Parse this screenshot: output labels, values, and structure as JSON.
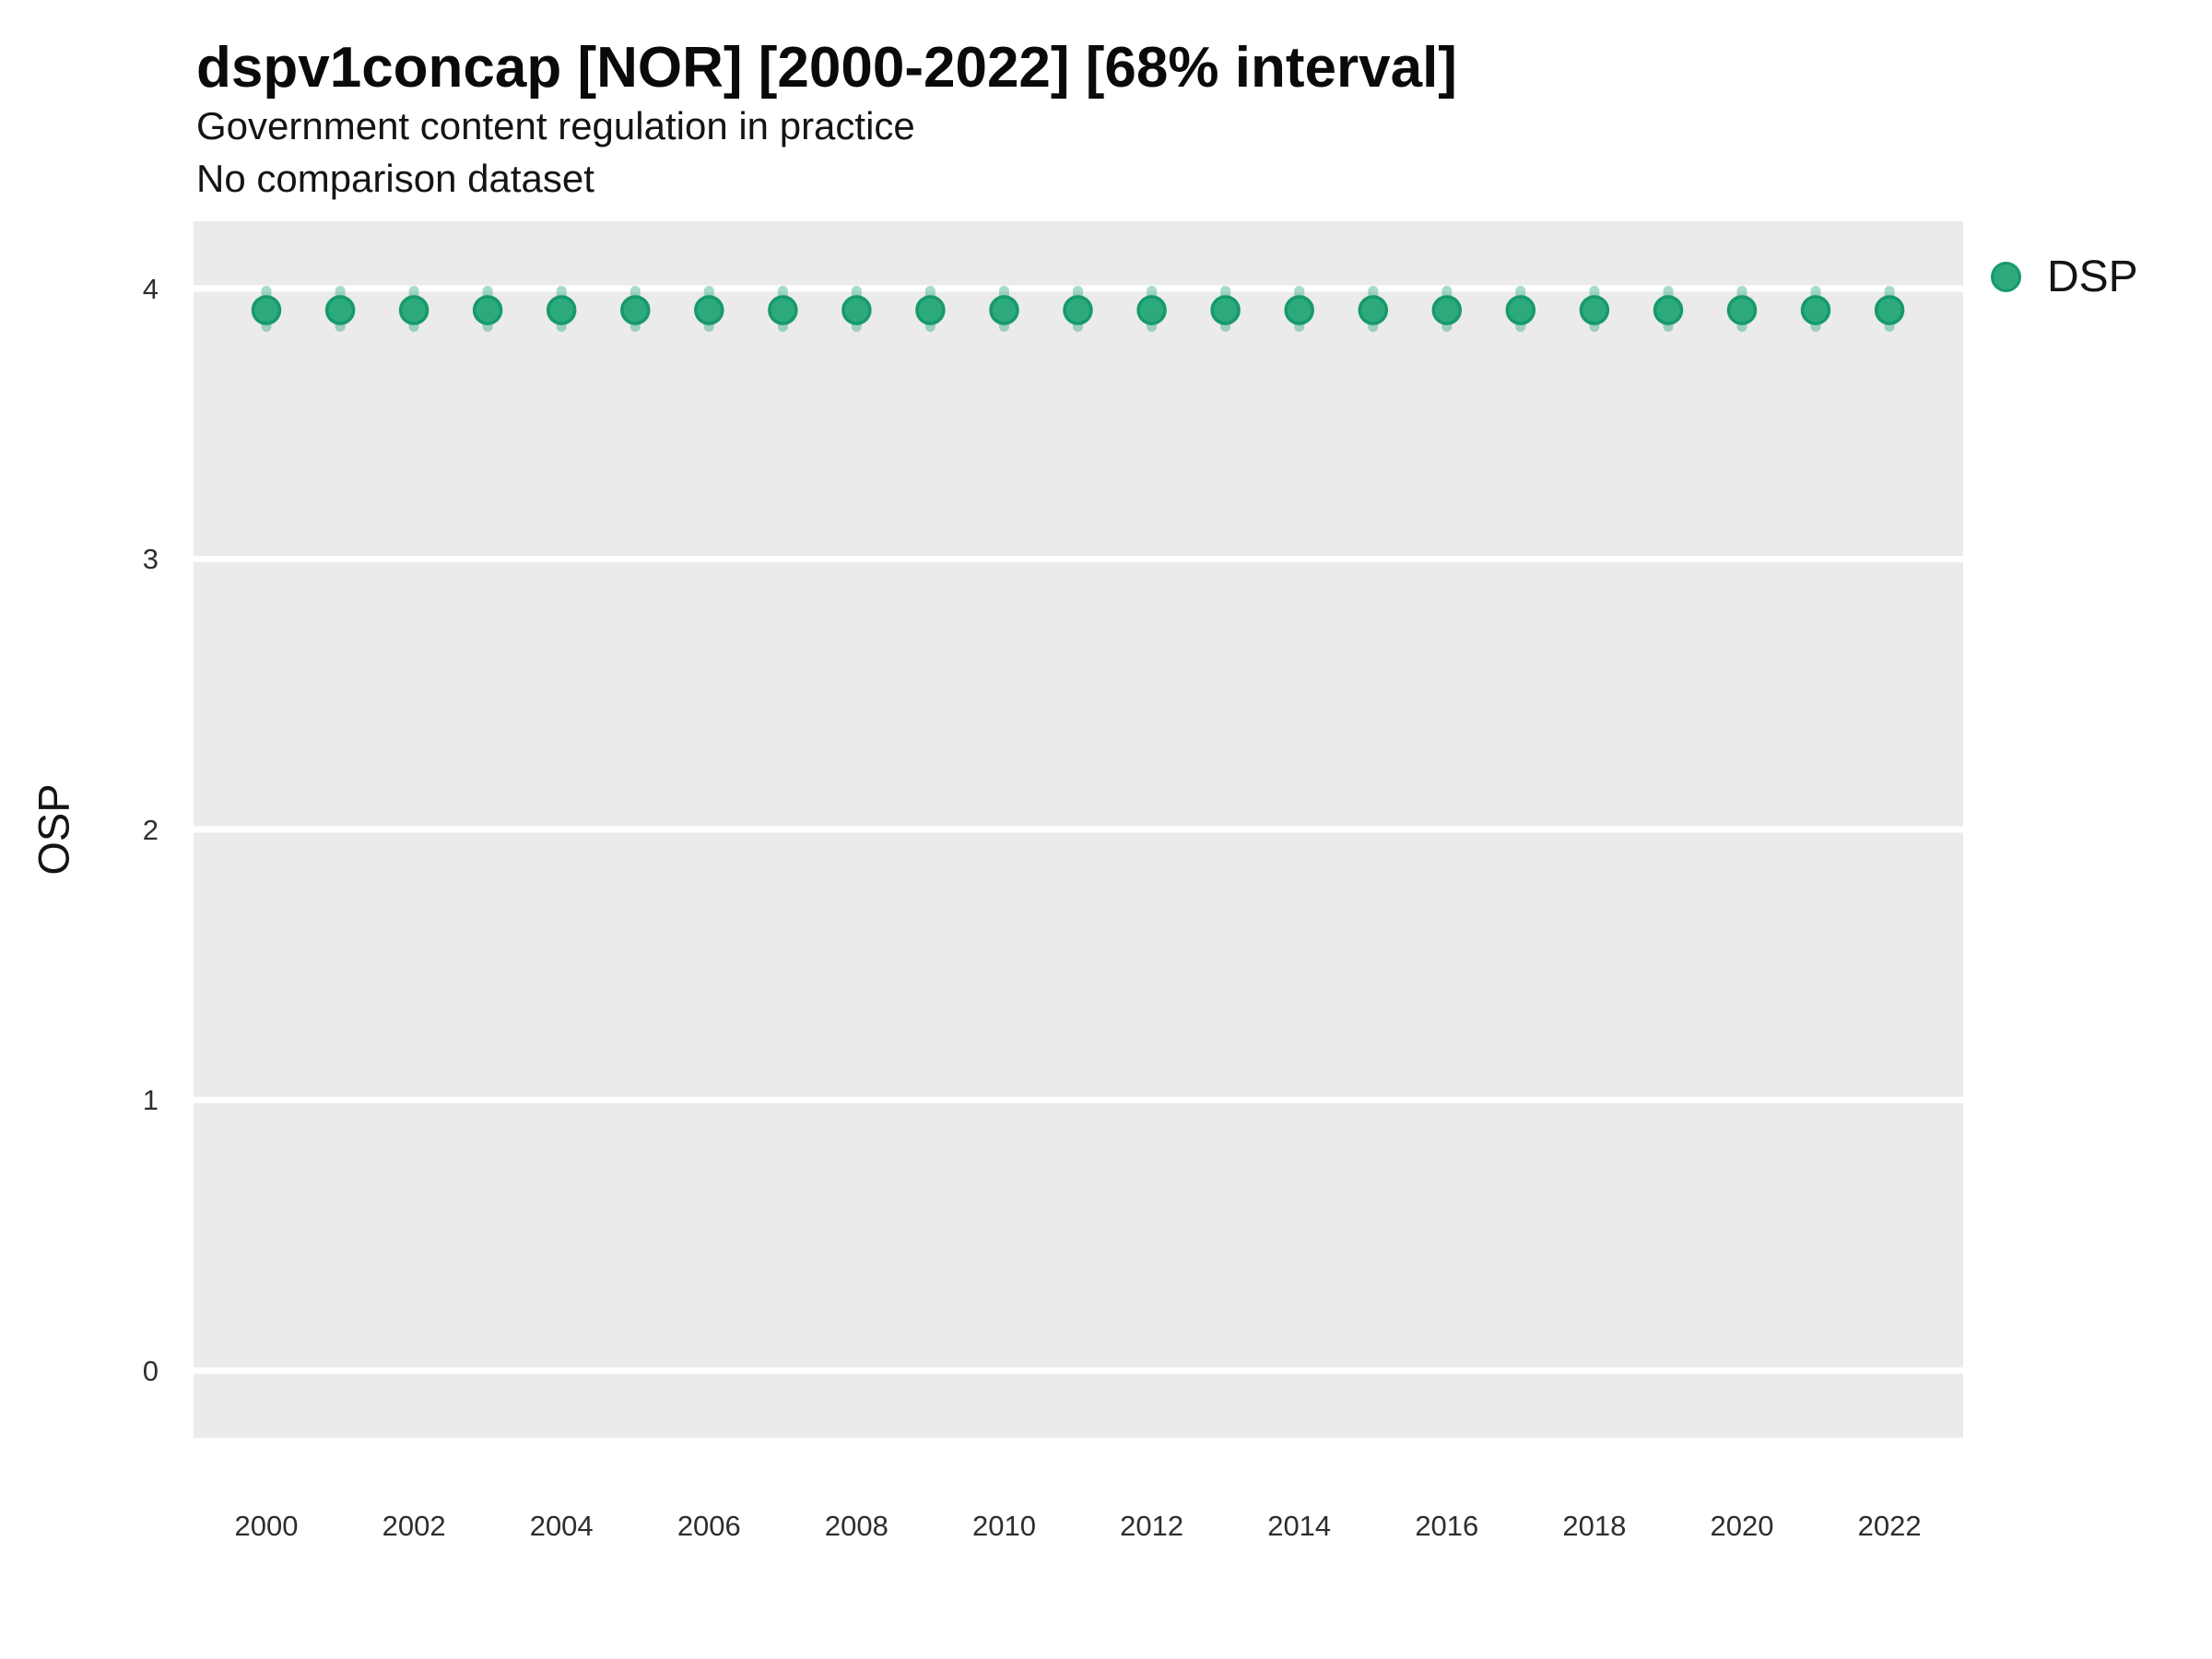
{
  "header": {
    "title": "dspv1concap [NOR] [2000-2022] [68% interval]",
    "subtitle": "Government content regulation in practice",
    "dataset_note": "No comparison dataset"
  },
  "legend": {
    "position": "right-top",
    "items": [
      {
        "label": "DSP",
        "marker": "circle",
        "color": "#2CAA7C",
        "stroke": "#17996B"
      }
    ]
  },
  "colors": {
    "point_fill": "#2CAA7C",
    "point_stroke": "#17996B",
    "interval_band": "rgba(44,170,124,0.42)",
    "panel_background": "#EBEBEB",
    "gridline": "#FFFFFF",
    "title_text": "#0a0a0a",
    "tick_text": "#2e2e2e"
  },
  "chart_data": {
    "type": "scatter",
    "title": "dspv1concap [NOR] [2000-2022] [68% interval]",
    "subtitle": "Government content regulation in practice",
    "annotation": "No comparison dataset",
    "xlabel": "",
    "ylabel": "OSP",
    "ylim": [
      -0.25,
      4.25
    ],
    "yticks": [
      0,
      1,
      2,
      3,
      4
    ],
    "xticks": [
      2000,
      2002,
      2004,
      2006,
      2008,
      2010,
      2012,
      2014,
      2016,
      2018,
      2020,
      2022
    ],
    "grid": "horizontal-major-only",
    "legend_position": "right-top",
    "interval_label": "68% interval",
    "x": [
      2000,
      2001,
      2002,
      2003,
      2004,
      2005,
      2006,
      2007,
      2008,
      2009,
      2010,
      2011,
      2012,
      2013,
      2014,
      2015,
      2016,
      2017,
      2018,
      2019,
      2020,
      2021,
      2022
    ],
    "series": [
      {
        "name": "DSP",
        "values": [
          3.92,
          3.92,
          3.92,
          3.92,
          3.92,
          3.92,
          3.92,
          3.92,
          3.92,
          3.92,
          3.92,
          3.92,
          3.92,
          3.92,
          3.92,
          3.92,
          3.92,
          3.92,
          3.92,
          3.92,
          3.92,
          3.92,
          3.92
        ],
        "interval_low": [
          3.84,
          3.84,
          3.84,
          3.84,
          3.84,
          3.84,
          3.84,
          3.84,
          3.84,
          3.84,
          3.84,
          3.84,
          3.84,
          3.84,
          3.84,
          3.84,
          3.84,
          3.84,
          3.84,
          3.84,
          3.84,
          3.84,
          3.84
        ],
        "interval_high": [
          4.01,
          4.01,
          4.01,
          4.01,
          4.01,
          4.01,
          4.01,
          4.01,
          4.01,
          4.01,
          4.01,
          4.01,
          4.01,
          4.01,
          4.01,
          4.01,
          4.01,
          4.01,
          4.01,
          4.01,
          4.01,
          4.01,
          4.01
        ]
      }
    ]
  }
}
